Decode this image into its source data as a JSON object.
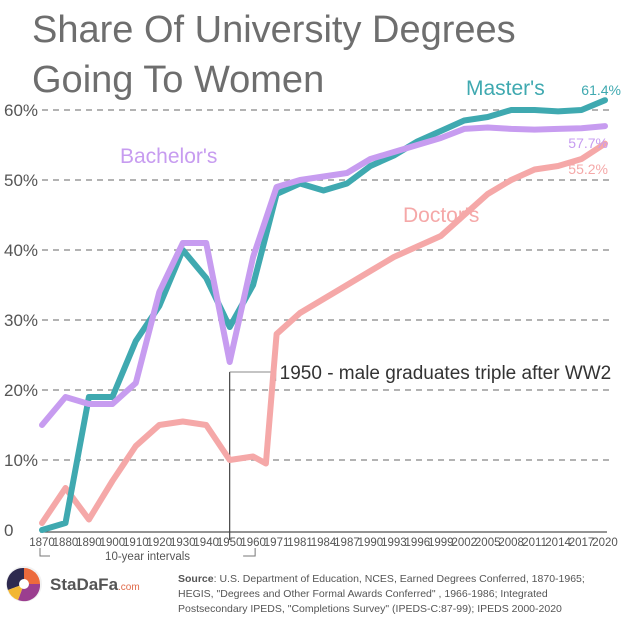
{
  "chart_data": {
    "type": "line",
    "title_line1": "Share Of University Degrees",
    "title_line2": "Going To Women",
    "xlabel": "",
    "ylabel": "",
    "xlim": [
      1870,
      2020
    ],
    "ylim": [
      0,
      60
    ],
    "y_ticks": [
      0,
      10,
      20,
      30,
      40,
      50,
      60
    ],
    "y_tick_labels": [
      "0",
      "10%",
      "20%",
      "30%",
      "40%",
      "50%",
      "60%"
    ],
    "x_ticks": [
      1870,
      1880,
      1890,
      1900,
      1910,
      1920,
      1930,
      1940,
      1950,
      1960,
      1971,
      1981,
      1984,
      1987,
      1990,
      1993,
      1996,
      1999,
      2002,
      2005,
      2008,
      2011,
      2014,
      2017,
      2020
    ],
    "x_tick_labels": [
      "1870",
      "1880",
      "1890",
      "1900",
      "1910",
      "1920",
      "1930",
      "1940",
      "1950",
      "1960",
      "1971",
      "1981",
      "1984",
      "1987",
      "1990",
      "1993",
      "1996",
      "1999",
      "2002",
      "2005",
      "2008",
      "2011",
      "2014",
      "2017",
      "2020"
    ],
    "series": [
      {
        "name": "Master's",
        "color": "#3fa9b0",
        "end_label": "61.4%",
        "points": [
          [
            1870,
            0
          ],
          [
            1880,
            1
          ],
          [
            1890,
            19
          ],
          [
            1900,
            19
          ],
          [
            1910,
            27
          ],
          [
            1920,
            32
          ],
          [
            1930,
            40
          ],
          [
            1940,
            36
          ],
          [
            1950,
            29
          ],
          [
            1960,
            35
          ],
          [
            1971,
            48
          ],
          [
            1981,
            49.5
          ],
          [
            1984,
            48.5
          ],
          [
            1987,
            49.5
          ],
          [
            1990,
            52
          ],
          [
            1993,
            53.5
          ],
          [
            1996,
            55.5
          ],
          [
            1999,
            57
          ],
          [
            2002,
            58.5
          ],
          [
            2005,
            59
          ],
          [
            2008,
            60
          ],
          [
            2011,
            60
          ],
          [
            2014,
            59.8
          ],
          [
            2017,
            60
          ],
          [
            2020,
            61.4
          ]
        ]
      },
      {
        "name": "Bachelor's",
        "color": "#c79cf0",
        "end_label": "57.7%",
        "points": [
          [
            1870,
            15
          ],
          [
            1880,
            19
          ],
          [
            1890,
            18
          ],
          [
            1900,
            18
          ],
          [
            1910,
            21
          ],
          [
            1920,
            34
          ],
          [
            1930,
            41
          ],
          [
            1940,
            41
          ],
          [
            1950,
            24
          ],
          [
            1960,
            39
          ],
          [
            1971,
            49
          ],
          [
            1981,
            50
          ],
          [
            1984,
            50.5
          ],
          [
            1987,
            51
          ],
          [
            1990,
            53
          ],
          [
            1993,
            54
          ],
          [
            1996,
            55
          ],
          [
            1999,
            56
          ],
          [
            2002,
            57.3
          ],
          [
            2005,
            57.5
          ],
          [
            2008,
            57.3
          ],
          [
            2011,
            57.2
          ],
          [
            2014,
            57.3
          ],
          [
            2017,
            57.4
          ],
          [
            2020,
            57.7
          ]
        ]
      },
      {
        "name": "Doctor's",
        "color": "#f5a8a8",
        "end_label": "55.2%",
        "points": [
          [
            1870,
            1
          ],
          [
            1880,
            6
          ],
          [
            1890,
            1.5
          ],
          [
            1900,
            7
          ],
          [
            1910,
            12
          ],
          [
            1920,
            15
          ],
          [
            1930,
            15.5
          ],
          [
            1940,
            15
          ],
          [
            1950,
            10
          ],
          [
            1960,
            10.5
          ],
          [
            1966,
            9.5
          ],
          [
            1971,
            28
          ],
          [
            1981,
            31
          ],
          [
            1984,
            33
          ],
          [
            1987,
            35
          ],
          [
            1990,
            37
          ],
          [
            1993,
            39
          ],
          [
            1996,
            40.5
          ],
          [
            1999,
            42
          ],
          [
            2002,
            45
          ],
          [
            2005,
            48
          ],
          [
            2008,
            50
          ],
          [
            2011,
            51.5
          ],
          [
            2014,
            52
          ],
          [
            2017,
            53
          ],
          [
            2020,
            55.2
          ]
        ]
      }
    ],
    "annotation": {
      "text": "1950 - male graduates triple after WW2",
      "x": 1950
    },
    "interval_note": "10-year intervals",
    "interval_range": [
      1870,
      1960
    ]
  },
  "source_label": "Source",
  "source_lines": [
    ": U.S. Department of Education, NCES, Earned Degrees Conferred, 1870-1965;",
    "HEGIS, \"Degrees and Other Formal Awards Conferred\" , 1966-1986; Integrated",
    "Postsecondary IPEDS, \"Completions Survey\" (IPEDS-C:87-99); IPEDS 2000-2020"
  ],
  "logo": {
    "name": "StaDaFa",
    "suffix": ".com"
  }
}
